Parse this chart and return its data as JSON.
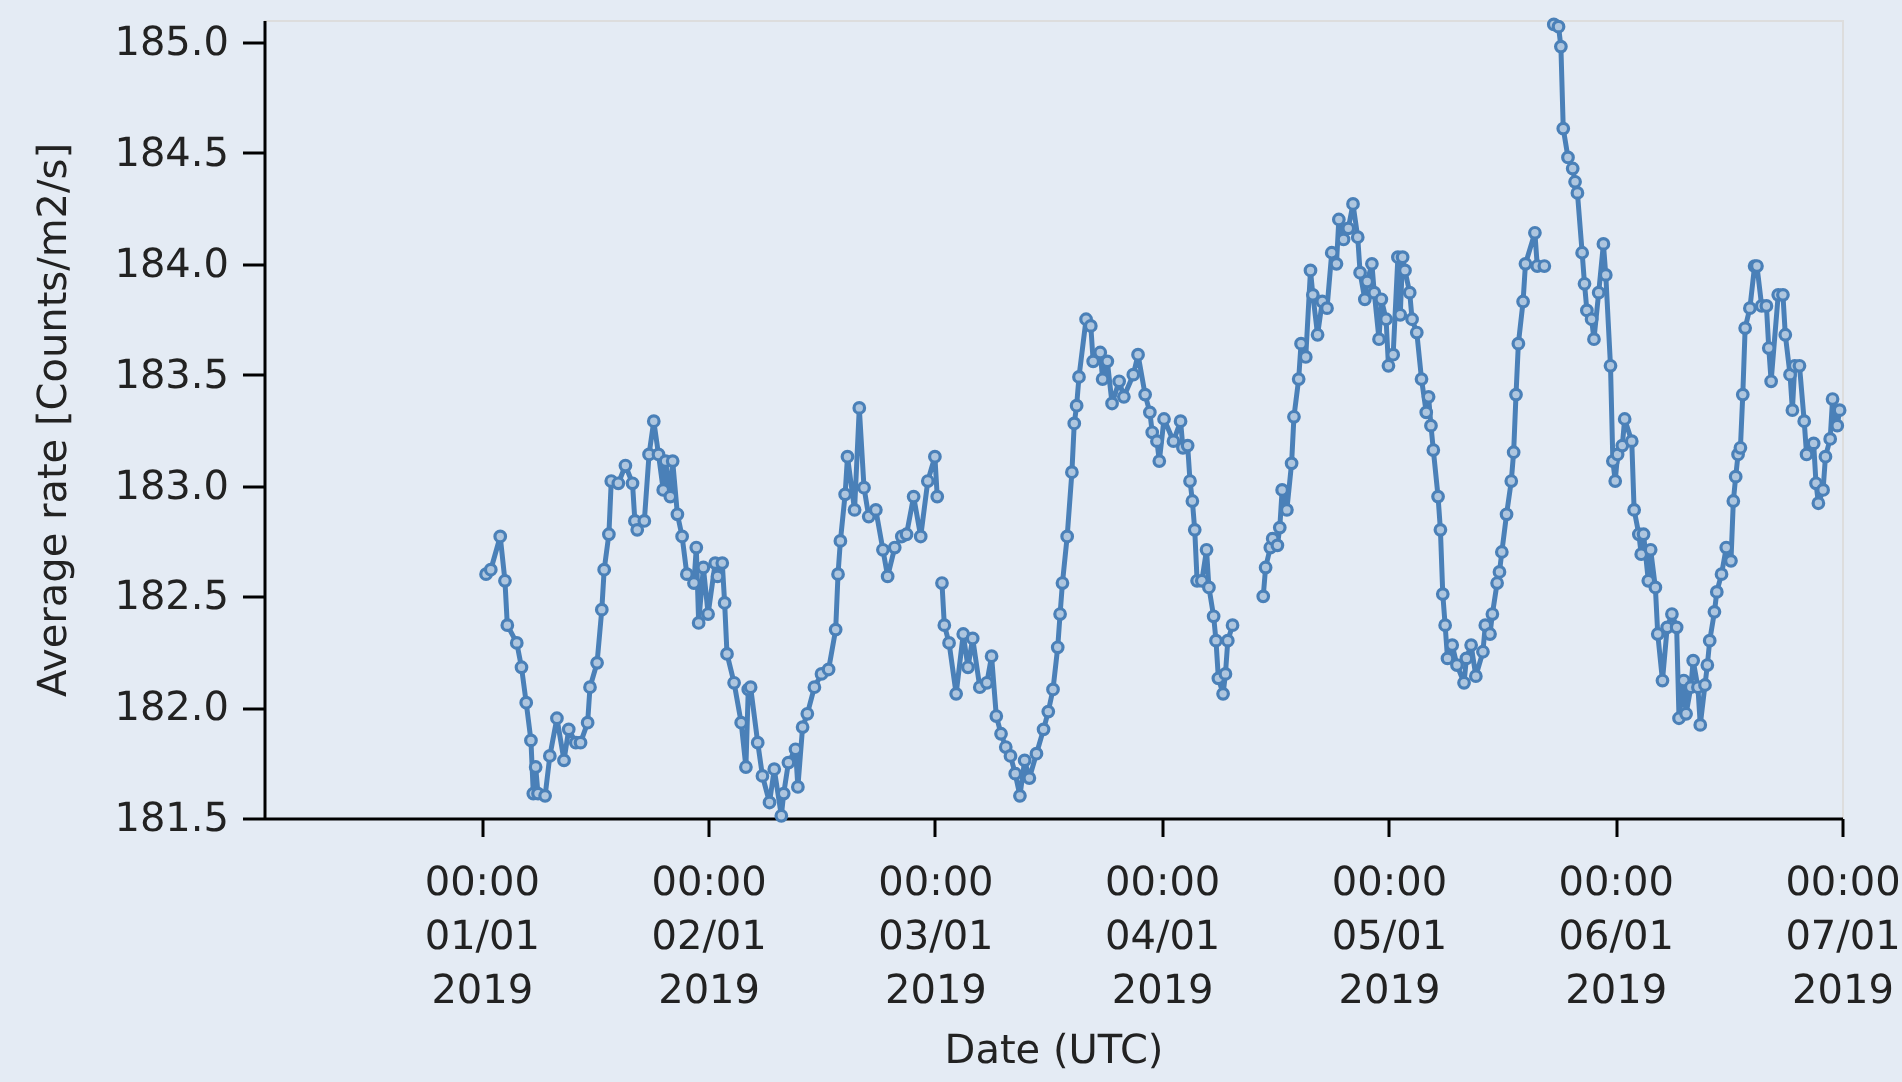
{
  "chart_data": {
    "type": "line",
    "xlabel": "Date (UTC)",
    "ylabel": "Average rate [Counts/m2/s]",
    "marker": "circle",
    "line_style": "solid",
    "grid": false,
    "xlim": [
      "2018-12-31T01:00",
      "2019-01-07T00:00"
    ],
    "ylim": [
      181.5,
      185.1
    ],
    "xticks": [
      {
        "value": "2019-01-01T00:00",
        "label": "00:00\n01/01\n2019"
      },
      {
        "value": "2019-01-02T00:00",
        "label": "00:00\n02/01\n2019"
      },
      {
        "value": "2019-01-03T00:00",
        "label": "00:00\n03/01\n2019"
      },
      {
        "value": "2019-01-04T00:00",
        "label": "00:00\n04/01\n2019"
      },
      {
        "value": "2019-01-05T00:00",
        "label": "00:00\n05/01\n2019"
      },
      {
        "value": "2019-01-06T00:00",
        "label": "00:00\n06/01\n2019"
      },
      {
        "value": "2019-01-07T00:00",
        "label": "00:00\n07/01\n2019"
      }
    ],
    "yticks": [
      {
        "value": 181.5,
        "label": "181.5"
      },
      {
        "value": 182.0,
        "label": "182.0"
      },
      {
        "value": 182.5,
        "label": "182.5"
      },
      {
        "value": 183.0,
        "label": "183.0"
      },
      {
        "value": 183.5,
        "label": "183.5"
      },
      {
        "value": 184.0,
        "label": "184.0"
      },
      {
        "value": 184.5,
        "label": "184.5"
      },
      {
        "value": 185.0,
        "label": "185.0"
      }
    ],
    "x": [
      "2019-01-01T00:30",
      "2019-01-01T01:00",
      "2019-01-01T02:00",
      "2019-01-01T02:30",
      "2019-01-01T02:45",
      "2019-01-01T03:45",
      "2019-01-01T04:15",
      "2019-01-01T04:45",
      "2019-01-01T05:15",
      "2019-01-01T05:30",
      "2019-01-01T05:45",
      "2019-01-01T06:00",
      "2019-01-01T06:45",
      "2019-01-01T07:15",
      "2019-01-01T08:00",
      "2019-01-01T08:45",
      "2019-01-01T09:15",
      "2019-01-01T10:00",
      "2019-01-01T10:30",
      "2019-01-01T11:15",
      "2019-01-01T11:30",
      "2019-01-01T12:15",
      "2019-01-01T12:45",
      "2019-01-01T13:00",
      "2019-01-01T13:30",
      "2019-01-01T13:45",
      "2019-01-01T14:30",
      "2019-01-01T15:15",
      "2019-01-01T16:00",
      "2019-01-01T16:15",
      "2019-01-01T16:30",
      "2019-01-01T17:15",
      "2019-01-01T17:45",
      "2019-01-01T18:15",
      "2019-01-01T18:45",
      "2019-01-01T19:15",
      "2019-01-01T19:30",
      "2019-01-01T20:00",
      "2019-01-01T20:15",
      "2019-01-01T20:45",
      "2019-01-01T21:15",
      "2019-01-01T21:45",
      "2019-01-01T22:30",
      "2019-01-01T22:45",
      "2019-01-01T23:00",
      "2019-01-01T23:30",
      "2019-01-02T00:00",
      "2019-01-02T00:45",
      "2019-01-02T01:00",
      "2019-01-02T01:30",
      "2019-01-02T01:45",
      "2019-01-02T02:00",
      "2019-01-02T02:45",
      "2019-01-02T03:30",
      "2019-01-02T04:00",
      "2019-01-02T04:15",
      "2019-01-02T04:30",
      "2019-01-02T05:15",
      "2019-01-02T05:45",
      "2019-01-02T06:30",
      "2019-01-02T07:00",
      "2019-01-02T07:45",
      "2019-01-02T08:00",
      "2019-01-02T08:30",
      "2019-01-02T09:15",
      "2019-01-02T09:30",
      "2019-01-02T10:00",
      "2019-01-02T10:30",
      "2019-01-02T11:15",
      "2019-01-02T12:00",
      "2019-01-02T12:45",
      "2019-01-02T13:30",
      "2019-01-02T13:45",
      "2019-01-02T14:00",
      "2019-01-02T14:30",
      "2019-01-02T14:45",
      "2019-01-02T15:30",
      "2019-01-02T16:00",
      "2019-01-02T16:30",
      "2019-01-02T17:00",
      "2019-01-02T17:45",
      "2019-01-02T18:30",
      "2019-01-02T19:00",
      "2019-01-02T19:45",
      "2019-01-02T20:30",
      "2019-01-02T21:00",
      "2019-01-02T21:45",
      "2019-01-02T22:30",
      "2019-01-02T23:15",
      "2019-01-03T00:00",
      "2019-01-03T00:15",
      "2019-01-03T00:30",
      "2019-01-03T00:45",
      "2019-01-03T01:00",
      "2019-01-03T01:30",
      "2019-01-03T02:15",
      "2019-01-03T03:00",
      "2019-01-03T03:30",
      "2019-01-03T04:00",
      "2019-01-03T04:45",
      "2019-01-03T05:30",
      "2019-01-03T06:00",
      "2019-01-03T06:30",
      "2019-01-03T07:00",
      "2019-01-03T07:30",
      "2019-01-03T08:00",
      "2019-01-03T08:30",
      "2019-01-03T09:00",
      "2019-01-03T09:30",
      "2019-01-03T10:00",
      "2019-01-03T10:45",
      "2019-01-03T11:30",
      "2019-01-03T12:00",
      "2019-01-03T12:30",
      "2019-01-03T13:00",
      "2019-01-03T13:15",
      "2019-01-03T13:30",
      "2019-01-03T14:00",
      "2019-01-03T14:30",
      "2019-01-03T14:45",
      "2019-01-03T15:00",
      "2019-01-03T15:15",
      "2019-01-03T16:00",
      "2019-01-03T16:30",
      "2019-01-03T16:45",
      "2019-01-03T17:30",
      "2019-01-03T17:45",
      "2019-01-03T18:15",
      "2019-01-03T18:45",
      "2019-01-03T19:30",
      "2019-01-03T20:00",
      "2019-01-03T21:00",
      "2019-01-03T21:30",
      "2019-01-03T22:15",
      "2019-01-03T22:45",
      "2019-01-03T23:00",
      "2019-01-03T23:30",
      "2019-01-03T23:45",
      "2019-01-04T00:15",
      "2019-01-04T01:15",
      "2019-01-04T02:00",
      "2019-01-04T02:15",
      "2019-01-04T02:45",
      "2019-01-04T03:00",
      "2019-01-04T03:15",
      "2019-01-04T03:30",
      "2019-01-04T03:45",
      "2019-01-04T04:15",
      "2019-01-04T04:45",
      "2019-01-04T05:00",
      "2019-01-04T05:30",
      "2019-01-04T05:45",
      "2019-01-04T06:00",
      "2019-01-04T06:30",
      "2019-01-04T06:45",
      "2019-01-04T07:00",
      "2019-01-04T07:30",
      "2019-01-04T08:30",
      "2019-01-04T10:45",
      "2019-01-04T11:00",
      "2019-01-04T11:30",
      "2019-01-04T11:45",
      "2019-01-04T12:15",
      "2019-01-04T12:30",
      "2019-01-04T12:45",
      "2019-01-04T13:15",
      "2019-01-04T13:45",
      "2019-01-04T14:00",
      "2019-01-04T14:30",
      "2019-01-04T14:45",
      "2019-01-04T15:15",
      "2019-01-04T15:45",
      "2019-01-04T16:00",
      "2019-01-04T16:30",
      "2019-01-04T17:00",
      "2019-01-04T17:30",
      "2019-01-04T18:00",
      "2019-01-04T18:30",
      "2019-01-04T18:45",
      "2019-01-04T19:15",
      "2019-01-04T19:45",
      "2019-01-04T20:15",
      "2019-01-04T20:45",
      "2019-01-04T21:00",
      "2019-01-04T21:30",
      "2019-01-04T21:45",
      "2019-01-04T22:15",
      "2019-01-04T22:30",
      "2019-01-04T23:00",
      "2019-01-04T23:15",
      "2019-01-04T23:45",
      "2019-01-05T00:00",
      "2019-01-05T00:30",
      "2019-01-05T01:00",
      "2019-01-05T01:15",
      "2019-01-05T01:30",
      "2019-01-05T01:45",
      "2019-01-05T02:15",
      "2019-01-05T02:30",
      "2019-01-05T03:00",
      "2019-01-05T03:30",
      "2019-01-05T04:00",
      "2019-01-05T04:15",
      "2019-01-05T04:30",
      "2019-01-05T04:45",
      "2019-01-05T05:15",
      "2019-01-05T05:30",
      "2019-01-05T05:45",
      "2019-01-05T06:00",
      "2019-01-05T06:15",
      "2019-01-05T06:45",
      "2019-01-05T07:15",
      "2019-01-05T08:00",
      "2019-01-05T08:15",
      "2019-01-05T08:45",
      "2019-01-05T09:15",
      "2019-01-05T10:00",
      "2019-01-05T10:15",
      "2019-01-05T10:45",
      "2019-01-05T11:00",
      "2019-01-05T11:30",
      "2019-01-05T11:45",
      "2019-01-05T12:00",
      "2019-01-05T12:30",
      "2019-01-05T13:00",
      "2019-01-05T13:15",
      "2019-01-05T13:30",
      "2019-01-05T13:45",
      "2019-01-05T14:15",
      "2019-01-05T14:30",
      "2019-01-05T15:30",
      "2019-01-05T15:45",
      "2019-01-05T16:30",
      "2019-01-05T17:00",
      "2019-01-05T17:30",
      "2019-01-05T18:00",
      "2019-01-05T18:15",
      "2019-01-05T18:30",
      "2019-01-05T19:00",
      "2019-01-05T19:30",
      "2019-01-05T19:45",
      "2019-01-05T20:00",
      "2019-01-05T20:30",
      "2019-01-05T20:45",
      "2019-01-05T21:00",
      "2019-01-05T21:30",
      "2019-01-05T21:45",
      "2019-01-05T22:15",
      "2019-01-05T22:45",
      "2019-01-05T23:00",
      "2019-01-05T23:30",
      "2019-01-05T23:45",
      "2019-01-06T00:00",
      "2019-01-06T00:15",
      "2019-01-06T00:45",
      "2019-01-06T01:00",
      "2019-01-06T01:45",
      "2019-01-06T02:00",
      "2019-01-06T02:30",
      "2019-01-06T02:45",
      "2019-01-06T03:00",
      "2019-01-06T03:30",
      "2019-01-06T03:45",
      "2019-01-06T04:15",
      "2019-01-06T04:30",
      "2019-01-06T05:00",
      "2019-01-06T05:30",
      "2019-01-06T06:00",
      "2019-01-06T06:30",
      "2019-01-06T06:45",
      "2019-01-06T07:15",
      "2019-01-06T07:30",
      "2019-01-06T08:00",
      "2019-01-06T08:15",
      "2019-01-06T08:45",
      "2019-01-06T09:00",
      "2019-01-06T09:30",
      "2019-01-06T09:45",
      "2019-01-06T10:00",
      "2019-01-06T10:30",
      "2019-01-06T10:45",
      "2019-01-06T11:15",
      "2019-01-06T11:45",
      "2019-01-06T12:15",
      "2019-01-06T12:30",
      "2019-01-06T12:45",
      "2019-01-06T13:00",
      "2019-01-06T13:15",
      "2019-01-06T13:30",
      "2019-01-06T13:45",
      "2019-01-06T14:15",
      "2019-01-06T14:45",
      "2019-01-06T15:00",
      "2019-01-06T15:30",
      "2019-01-06T16:00",
      "2019-01-06T16:15",
      "2019-01-06T16:30",
      "2019-01-06T17:15",
      "2019-01-06T17:45",
      "2019-01-06T18:00",
      "2019-01-06T18:30",
      "2019-01-06T18:45",
      "2019-01-06T19:00",
      "2019-01-06T19:30",
      "2019-01-06T20:00",
      "2019-01-06T20:15",
      "2019-01-06T21:00",
      "2019-01-06T21:15",
      "2019-01-06T21:30",
      "2019-01-06T22:00",
      "2019-01-06T22:15",
      "2019-01-06T22:45",
      "2019-01-06T23:00",
      "2019-01-06T23:30",
      "2019-01-06T23:45"
    ],
    "series": [
      {
        "color": "#4a80b8",
        "values": [
          182.6,
          182.62,
          182.77,
          182.57,
          182.37,
          182.29,
          182.18,
          182.02,
          181.85,
          181.61,
          181.73,
          181.61,
          181.6,
          181.78,
          181.95,
          181.76,
          181.9,
          181.84,
          181.84,
          181.93,
          182.09,
          182.2,
          182.44,
          182.62,
          182.78,
          183.02,
          183.01,
          183.09,
          183.01,
          182.84,
          182.8,
          182.84,
          183.14,
          183.29,
          183.14,
          182.98,
          183.11,
          182.95,
          183.11,
          182.87,
          182.77,
          182.6,
          182.56,
          182.72,
          182.38,
          182.63,
          182.42,
          182.65,
          182.59,
          182.65,
          182.47,
          182.24,
          182.11,
          181.93,
          181.73,
          182.08,
          182.09,
          181.84,
          181.69,
          181.57,
          181.72,
          181.51,
          181.61,
          181.75,
          181.81,
          181.64,
          181.91,
          181.97,
          182.09,
          182.15,
          182.17,
          182.35,
          182.6,
          182.75,
          182.96,
          183.13,
          182.89,
          183.35,
          182.99,
          182.86,
          182.89,
          182.71,
          182.59,
          182.72,
          182.77,
          182.78,
          182.95,
          182.77,
          183.02,
          183.13,
          182.95,
          null,
          182.56,
          182.37,
          182.29,
          182.06,
          182.33,
          182.18,
          182.31,
          182.09,
          182.11,
          182.23,
          181.96,
          181.88,
          181.82,
          181.78,
          181.7,
          181.6,
          181.76,
          181.68,
          181.79,
          181.9,
          181.98,
          182.08,
          182.27,
          182.42,
          182.56,
          182.77,
          183.06,
          183.28,
          183.36,
          183.49,
          183.75,
          183.72,
          183.56,
          183.6,
          183.48,
          183.56,
          183.37,
          183.47,
          183.4,
          183.5,
          183.59,
          183.41,
          183.33,
          183.24,
          183.2,
          183.11,
          183.3,
          183.2,
          183.29,
          183.17,
          183.18,
          183.02,
          182.93,
          182.8,
          182.57,
          182.57,
          182.71,
          182.54,
          182.41,
          182.3,
          182.13,
          182.06,
          182.15,
          182.3,
          182.37,
          null,
          182.5,
          182.63,
          182.72,
          182.76,
          182.73,
          182.81,
          182.98,
          182.89,
          183.1,
          183.31,
          183.48,
          183.64,
          183.58,
          183.97,
          183.86,
          183.68,
          183.83,
          183.8,
          184.05,
          184.0,
          184.2,
          184.11,
          184.16,
          184.27,
          184.12,
          183.96,
          183.84,
          183.92,
          184.0,
          183.87,
          183.66,
          183.84,
          183.75,
          183.54,
          183.59,
          184.03,
          183.77,
          184.03,
          183.97,
          183.87,
          183.75,
          183.69,
          183.48,
          183.33,
          183.4,
          183.27,
          183.16,
          182.95,
          182.8,
          182.51,
          182.37,
          182.22,
          182.28,
          182.19,
          182.11,
          182.22,
          182.28,
          182.14,
          182.25,
          182.37,
          182.33,
          182.42,
          182.56,
          182.61,
          182.7,
          182.87,
          183.02,
          183.15,
          183.41,
          183.64,
          183.83,
          184.0,
          184.14,
          183.99,
          183.99,
          null,
          185.08,
          185.07,
          184.98,
          184.61,
          184.48,
          184.43,
          184.37,
          184.32,
          184.05,
          183.91,
          183.79,
          183.75,
          183.66,
          183.87,
          184.09,
          183.95,
          183.54,
          183.11,
          183.02,
          183.14,
          183.18,
          183.3,
          183.2,
          182.89,
          182.78,
          182.69,
          182.78,
          182.57,
          182.71,
          182.54,
          182.33,
          182.12,
          182.36,
          182.42,
          182.36,
          181.95,
          182.12,
          181.97,
          182.09,
          182.21,
          182.09,
          181.92,
          182.1,
          182.19,
          182.3,
          182.43,
          182.52,
          182.6,
          182.72,
          182.66,
          182.93,
          183.04,
          183.14,
          183.17,
          183.41,
          183.71,
          183.8,
          183.99,
          183.99,
          183.81,
          183.81,
          183.62,
          183.47,
          183.86,
          183.86,
          183.68,
          183.5,
          183.34,
          183.54,
          183.54,
          183.29,
          183.14,
          183.19,
          183.01,
          182.92,
          182.98,
          183.13,
          183.21,
          183.39,
          183.27,
          183.34
        ]
      }
    ]
  }
}
